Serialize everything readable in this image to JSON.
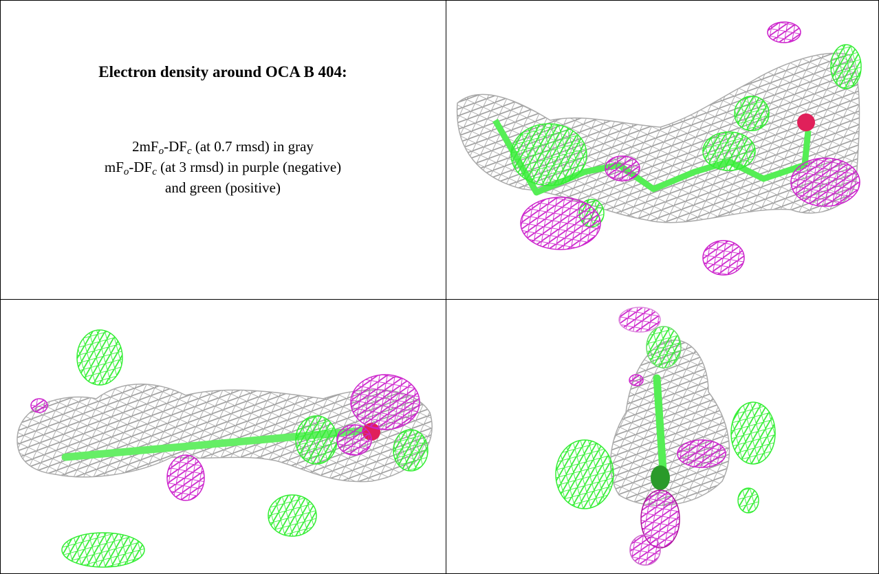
{
  "title": "Electron density around OCA B 404:",
  "caption_lines": [
    [
      {
        "text": "2mF"
      },
      {
        "sub": "o"
      },
      {
        "text": "-DF"
      },
      {
        "sub": "c"
      },
      {
        "text": " (at 0.7 rmsd) in gray"
      }
    ],
    [
      {
        "text": "mF"
      },
      {
        "sub": "o"
      },
      {
        "text": "-DF"
      },
      {
        "sub": "c"
      },
      {
        "text": " (at 3 rmsd) in purple (negative)"
      }
    ],
    [
      {
        "text": "and green (positive)"
      }
    ]
  ]
}
